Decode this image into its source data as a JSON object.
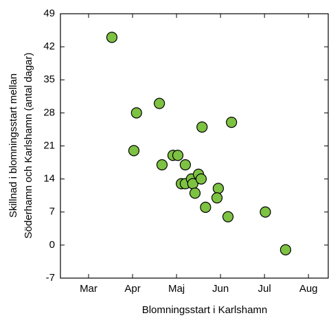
{
  "chart_data": {
    "type": "scatter",
    "ylabel": [
      "Skillnad i blomningsstart mellan",
      "Söderhamn och Karlshamn (antal dagar)"
    ],
    "xlabel": "Blomningsstart i Karlshamn",
    "x": [
      4.03,
      4.59,
      4.53,
      5.11,
      5.17,
      5.42,
      5.53,
      5.7,
      5.61,
      5.7,
      5.84,
      5.87,
      6.0,
      6.06,
      5.92,
      6.08,
      6.16,
      6.45,
      6.42,
      6.67,
      6.75,
      7.52,
      7.98
    ],
    "values": [
      44,
      28,
      20,
      30,
      17,
      19,
      19,
      17,
      13,
      13,
      14,
      13,
      15,
      14,
      11,
      25,
      8,
      12,
      10,
      6,
      26,
      7,
      -1
    ],
    "color": "#7dc242",
    "xlim": [
      2.86,
      8.95
    ],
    "xticks": [
      {
        "value": 3.5,
        "label": "Mar"
      },
      {
        "value": 4.5,
        "label": "Apr"
      },
      {
        "value": 5.5,
        "label": "Maj"
      },
      {
        "value": 6.5,
        "label": "Jun"
      },
      {
        "value": 7.5,
        "label": "Jul"
      },
      {
        "value": 8.5,
        "label": "Aug"
      }
    ],
    "ylim": [
      -7,
      49
    ],
    "yticks": [
      -7,
      0,
      7,
      14,
      21,
      28,
      35,
      42,
      49
    ]
  }
}
